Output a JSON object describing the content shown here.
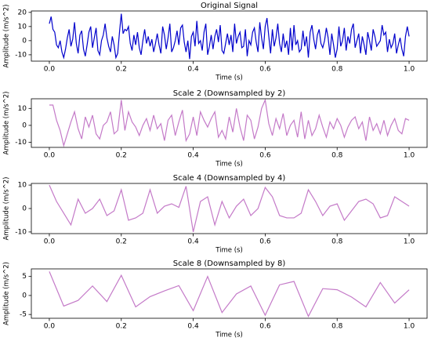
{
  "chart_data": [
    {
      "type": "line",
      "title": "Original Signal",
      "xlabel": "Time (s)",
      "ylabel": "Amplitude (m/s^2)",
      "color": "#0000cc",
      "xlim": [
        -0.05,
        1.05
      ],
      "ylim": [
        -14.5,
        21
      ],
      "xticks": [
        {
          "value": 0,
          "label": "0.0"
        },
        {
          "value": 0.2,
          "label": "0.2"
        },
        {
          "value": 0.4,
          "label": "0.4"
        },
        {
          "value": 0.6,
          "label": "0.6"
        },
        {
          "value": 0.8,
          "label": "0.8"
        },
        {
          "value": 1,
          "label": "1.0"
        }
      ],
      "yticks": [
        -10,
        0,
        10,
        20
      ],
      "x": [
        0,
        0.005,
        0.01,
        0.015,
        0.02,
        0.025,
        0.03,
        0.035,
        0.04,
        0.045,
        0.05,
        0.055,
        0.06,
        0.065,
        0.07,
        0.075,
        0.08,
        0.085,
        0.09,
        0.095,
        0.1,
        0.105,
        0.11,
        0.115,
        0.12,
        0.125,
        0.13,
        0.135,
        0.14,
        0.145,
        0.15,
        0.155,
        0.16,
        0.165,
        0.17,
        0.175,
        0.18,
        0.185,
        0.19,
        0.195,
        0.2,
        0.205,
        0.21,
        0.215,
        0.22,
        0.225,
        0.23,
        0.235,
        0.24,
        0.245,
        0.25,
        0.255,
        0.26,
        0.265,
        0.27,
        0.275,
        0.28,
        0.285,
        0.29,
        0.295,
        0.3,
        0.305,
        0.31,
        0.315,
        0.32,
        0.325,
        0.33,
        0.335,
        0.34,
        0.345,
        0.35,
        0.355,
        0.36,
        0.365,
        0.37,
        0.375,
        0.38,
        0.385,
        0.39,
        0.395,
        0.4,
        0.405,
        0.41,
        0.415,
        0.42,
        0.425,
        0.43,
        0.435,
        0.44,
        0.445,
        0.45,
        0.455,
        0.46,
        0.465,
        0.47,
        0.475,
        0.48,
        0.485,
        0.49,
        0.495,
        0.5,
        0.505,
        0.51,
        0.515,
        0.52,
        0.525,
        0.53,
        0.535,
        0.54,
        0.545,
        0.55,
        0.555,
        0.56,
        0.565,
        0.57,
        0.575,
        0.58,
        0.585,
        0.59,
        0.595,
        0.6,
        0.605,
        0.61,
        0.615,
        0.62,
        0.625,
        0.63,
        0.635,
        0.64,
        0.645,
        0.65,
        0.655,
        0.66,
        0.665,
        0.67,
        0.675,
        0.68,
        0.685,
        0.69,
        0.695,
        0.7,
        0.705,
        0.71,
        0.715,
        0.72,
        0.725,
        0.73,
        0.735,
        0.74,
        0.745,
        0.75,
        0.755,
        0.76,
        0.765,
        0.77,
        0.775,
        0.78,
        0.785,
        0.79,
        0.795,
        0.8,
        0.805,
        0.81,
        0.815,
        0.82,
        0.825,
        0.83,
        0.835,
        0.84,
        0.845,
        0.85,
        0.855,
        0.86,
        0.865,
        0.87,
        0.875,
        0.88,
        0.885,
        0.89,
        0.895,
        0.9,
        0.905,
        0.91,
        0.915,
        0.92,
        0.925,
        0.93,
        0.935,
        0.94,
        0.945,
        0.95,
        0.955,
        0.96,
        0.965,
        0.97,
        0.975,
        0.98,
        0.985,
        0.99,
        0.995,
        1
      ],
      "values": [
        12,
        17,
        8,
        6,
        -3,
        -5,
        0,
        -8,
        -12,
        -6,
        2,
        8,
        -4,
        1,
        13,
        -2,
        -9,
        4,
        7,
        -6,
        -11,
        -3,
        6,
        10,
        -5,
        2,
        9,
        -7,
        -10,
        0,
        4,
        12,
        2,
        -4,
        -8,
        3,
        -3,
        -12,
        -9,
        6,
        19,
        5,
        8,
        7,
        10,
        -2,
        -7,
        4,
        -3,
        6,
        -5,
        -10,
        0,
        8,
        -2,
        3,
        -4,
        1,
        -8,
        -2,
        5,
        -3,
        -9,
        10,
        4,
        -6,
        2,
        12,
        -8,
        -5,
        0,
        7,
        -3,
        9,
        11,
        -1,
        -8,
        0,
        -13,
        3,
        6,
        -4,
        14,
        -2,
        0,
        -7,
        6,
        12,
        -10,
        -4,
        4,
        -6,
        3,
        8,
        -1,
        11,
        -7,
        -9,
        -2,
        5,
        -3,
        4,
        -8,
        12,
        -2,
        3,
        6,
        -5,
        -4,
        8,
        -11,
        0,
        -3,
        6,
        9,
        -1,
        -8,
        13,
        2,
        -6,
        10,
        16,
        3,
        -9,
        8,
        -4,
        2,
        12,
        -2,
        -8,
        5,
        -5,
        0,
        -10,
        9,
        -7,
        11,
        -3,
        0,
        -8,
        -6,
        7,
        -4,
        3,
        -12,
        6,
        11,
        1,
        -6,
        4,
        8,
        -2,
        -5,
        0,
        9,
        2,
        -10,
        5,
        -3,
        -12,
        -6,
        10,
        -4,
        0,
        9,
        -7,
        3,
        -2,
        8,
        12,
        -5,
        0,
        5,
        -9,
        3,
        -3,
        -10,
        6,
        0,
        -7,
        8,
        3,
        -4,
        -2,
        0,
        11,
        4,
        6,
        -8,
        1,
        -5,
        -2,
        5,
        -9,
        -3,
        2,
        -6,
        -11,
        3,
        10,
        3
      ]
    },
    {
      "type": "line",
      "title": "Scale 2 (Downsampled by 2)",
      "xlabel": "Time (s)",
      "ylabel": "Amplitude (m/s^2)",
      "color": "#c47ac8",
      "xlim": [
        -0.05,
        1.05
      ],
      "ylim": [
        -13,
        15.7
      ],
      "xticks": [
        {
          "value": 0,
          "label": "0.0"
        },
        {
          "value": 0.2,
          "label": "0.2"
        },
        {
          "value": 0.4,
          "label": "0.4"
        },
        {
          "value": 0.6,
          "label": "0.6"
        },
        {
          "value": 0.8,
          "label": "0.8"
        },
        {
          "value": 1,
          "label": "1.0"
        }
      ],
      "yticks": [
        -10,
        0,
        10
      ],
      "x": [
        0,
        0.01,
        0.02,
        0.03,
        0.04,
        0.05,
        0.06,
        0.07,
        0.08,
        0.09,
        0.1,
        0.11,
        0.12,
        0.13,
        0.14,
        0.15,
        0.16,
        0.17,
        0.18,
        0.19,
        0.2,
        0.21,
        0.22,
        0.23,
        0.24,
        0.25,
        0.26,
        0.27,
        0.28,
        0.29,
        0.3,
        0.31,
        0.32,
        0.33,
        0.34,
        0.35,
        0.36,
        0.37,
        0.38,
        0.39,
        0.4,
        0.41,
        0.42,
        0.43,
        0.44,
        0.45,
        0.46,
        0.47,
        0.48,
        0.49,
        0.5,
        0.51,
        0.52,
        0.53,
        0.54,
        0.55,
        0.56,
        0.57,
        0.58,
        0.59,
        0.6,
        0.61,
        0.62,
        0.63,
        0.64,
        0.65,
        0.66,
        0.67,
        0.68,
        0.69,
        0.7,
        0.71,
        0.72,
        0.73,
        0.74,
        0.75,
        0.76,
        0.77,
        0.78,
        0.79,
        0.8,
        0.81,
        0.82,
        0.83,
        0.84,
        0.85,
        0.86,
        0.87,
        0.88,
        0.89,
        0.9,
        0.91,
        0.92,
        0.93,
        0.94,
        0.95,
        0.96,
        0.97,
        0.98,
        0.99,
        1
      ],
      "values": [
        12,
        12,
        3,
        -3,
        -12,
        -5,
        2,
        8,
        -2,
        -8,
        5,
        -1,
        6,
        -5,
        -8,
        0,
        2,
        8,
        -5,
        -3,
        15,
        -3,
        8,
        2,
        -1,
        -6,
        0,
        4,
        -3,
        6,
        -2,
        1,
        -9,
        3,
        6,
        -6,
        2,
        9,
        -9,
        -5,
        5,
        -6,
        8,
        3,
        -1,
        4,
        8,
        -7,
        -3,
        -8,
        5,
        -4,
        10,
        -1,
        -9,
        6,
        3,
        -8,
        -1,
        10,
        15,
        1,
        -6,
        4,
        -2,
        7,
        -6,
        0,
        3,
        -7,
        8,
        -8,
        3,
        -6,
        -2,
        6,
        -1,
        -7,
        2,
        -2,
        4,
        0,
        -7,
        -1,
        3,
        5,
        -2,
        2,
        -9,
        5,
        -3,
        1,
        -5,
        3,
        -6,
        0,
        4,
        -3,
        -5,
        4,
        3
      ]
    },
    {
      "type": "line",
      "title": "Scale 4 (Downsampled by 4)",
      "xlabel": "Time (s)",
      "ylabel": "Amplitude (m/s^2)",
      "color": "#c47ac8",
      "xlim": [
        -0.05,
        1.05
      ],
      "ylim": [
        -10.7,
        10.7
      ],
      "xticks": [
        {
          "value": 0,
          "label": "0.0"
        },
        {
          "value": 0.2,
          "label": "0.2"
        },
        {
          "value": 0.4,
          "label": "0.4"
        },
        {
          "value": 0.6,
          "label": "0.6"
        },
        {
          "value": 0.8,
          "label": "0.8"
        },
        {
          "value": 1,
          "label": "1.0"
        }
      ],
      "yticks": [
        -10,
        0,
        10
      ],
      "x": [
        0,
        0.02,
        0.04,
        0.06,
        0.08,
        0.1,
        0.12,
        0.14,
        0.16,
        0.18,
        0.2,
        0.22,
        0.24,
        0.26,
        0.28,
        0.3,
        0.32,
        0.34,
        0.36,
        0.38,
        0.4,
        0.42,
        0.44,
        0.46,
        0.48,
        0.5,
        0.52,
        0.54,
        0.56,
        0.58,
        0.6,
        0.62,
        0.64,
        0.66,
        0.68,
        0.7,
        0.72,
        0.74,
        0.76,
        0.78,
        0.8,
        0.82,
        0.84,
        0.86,
        0.88,
        0.9,
        0.92,
        0.94,
        0.96,
        0.98,
        1
      ],
      "values": [
        10,
        3,
        -2,
        -7,
        4,
        -2,
        0,
        4,
        -3,
        -1,
        8,
        -5,
        -4,
        -2,
        8,
        -2,
        1,
        2,
        0.5,
        9.5,
        -10,
        3,
        5,
        -7,
        3,
        -4,
        1,
        4,
        -3,
        0,
        9,
        5,
        -3,
        -4,
        -4,
        -2,
        8,
        3,
        -3,
        1,
        2,
        -5,
        -1,
        3,
        4,
        2,
        -4,
        -3,
        5,
        3,
        1
      ]
    },
    {
      "type": "line",
      "title": "Scale 8 (Downsampled by 8)",
      "xlabel": "Time (s)",
      "ylabel": "Amplitude (m/s^2)",
      "color": "#c47ac8",
      "xlim": [
        -0.05,
        1.05
      ],
      "ylim": [
        -6,
        7
      ],
      "xticks": [
        {
          "value": 0,
          "label": "0.0"
        },
        {
          "value": 0.2,
          "label": "0.2"
        },
        {
          "value": 0.4,
          "label": "0.4"
        },
        {
          "value": 0.6,
          "label": "0.6"
        },
        {
          "value": 0.8,
          "label": "0.8"
        },
        {
          "value": 1,
          "label": "1.0"
        }
      ],
      "yticks": [
        -5,
        0,
        5
      ],
      "x": [
        0,
        0.04,
        0.08,
        0.12,
        0.16,
        0.2,
        0.24,
        0.28,
        0.32,
        0.36,
        0.4,
        0.44,
        0.48,
        0.52,
        0.56,
        0.6,
        0.64,
        0.68,
        0.72,
        0.76,
        0.8,
        0.84,
        0.88,
        0.92,
        0.96,
        1
      ],
      "values": [
        6.3,
        -2.8,
        -1.3,
        2.5,
        -1.6,
        5.3,
        -3,
        -0.3,
        1.2,
        2.6,
        -4,
        5,
        -4.5,
        0.4,
        2.5,
        -5.2,
        2.8,
        3.7,
        -5.5,
        1.8,
        1.5,
        -0.4,
        -3,
        3.4,
        -2,
        1.5
      ]
    }
  ]
}
